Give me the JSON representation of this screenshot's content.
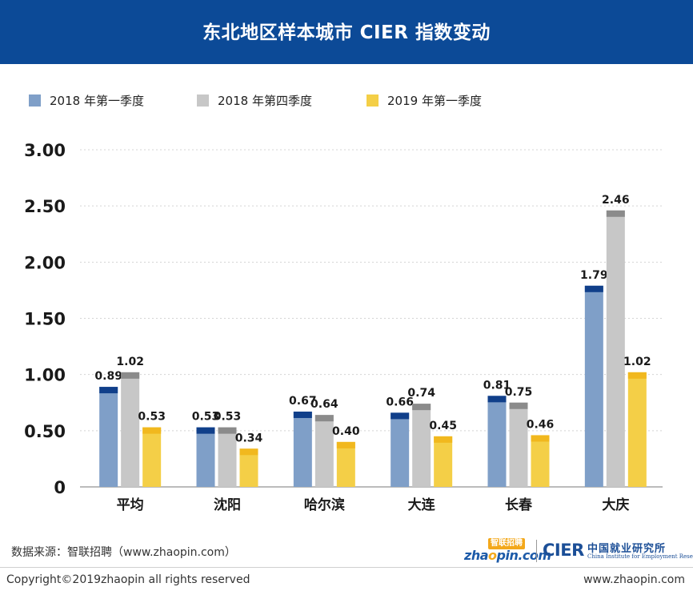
{
  "header": {
    "title": "东北地区样本城市 CIER 指数变动"
  },
  "chart_data": {
    "type": "bar",
    "title": "东北地区样本城市 CIER 指数变动",
    "categories": [
      "平均",
      "沈阳",
      "哈尔滨",
      "大连",
      "长春",
      "大庆"
    ],
    "series": [
      {
        "name": "2018 年第一季度",
        "values": [
          0.89,
          0.53,
          0.67,
          0.66,
          0.81,
          1.79
        ],
        "labels": [
          "0.89",
          "0.53",
          "0.67",
          "0.66",
          "0.81",
          "1.79"
        ]
      },
      {
        "name": "2018 年第四季度",
        "values": [
          1.02,
          0.53,
          0.64,
          0.74,
          0.75,
          2.46
        ],
        "labels": [
          "1.02",
          "0.53",
          "0.64",
          "0.74",
          "0.75",
          "2.46"
        ]
      },
      {
        "name": "2019 年第一季度",
        "values": [
          0.53,
          0.34,
          0.4,
          0.45,
          0.46,
          1.02
        ],
        "labels": [
          "0.53",
          "0.34",
          "0.40",
          "0.45",
          "0.46",
          "1.02"
        ]
      }
    ],
    "yticks": [
      "0",
      "0.50",
      "1.00",
      "1.50",
      "2.00",
      "2.50",
      "3.00"
    ],
    "ylim": [
      0,
      3
    ],
    "grid": true,
    "legend": "top-left",
    "colors": {
      "series_body": [
        "#7f9fc8",
        "#c7c7c7",
        "#f4cf47"
      ],
      "series_cap": [
        "#103f8a",
        "#8b8b8b",
        "#f1b81e"
      ]
    }
  },
  "footer": {
    "source": "数据来源：智联招聘（www.zhaopin.com）",
    "copyright": "Copyright©2019zhaopin all rights reserved",
    "website": "www.zhaopin.com"
  },
  "logos": {
    "zhaopin_cn": "智联招聘",
    "zhaopin_main_a": "zha",
    "zhaopin_main_o": "o",
    "zhaopin_main_b": "pin.com",
    "cier": "CIER",
    "cier_cn": "中国就业研究所",
    "cier_en": "China Institute for Employment Research"
  }
}
